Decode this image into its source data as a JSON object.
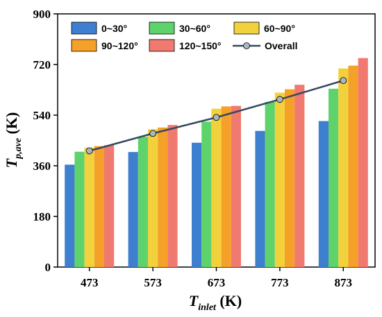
{
  "chart_data": {
    "type": "bar",
    "categories": [
      "473",
      "573",
      "673",
      "773",
      "873"
    ],
    "series": [
      {
        "name": "0~30°",
        "color": "#3f7fcf",
        "values": [
          364,
          409,
          442,
          484,
          519
        ]
      },
      {
        "name": "30~60°",
        "color": "#5ed36b",
        "values": [
          410,
          463,
          517,
          587,
          634
        ]
      },
      {
        "name": "60~90°",
        "color": "#f2d23c",
        "values": [
          425,
          490,
          563,
          620,
          706
        ]
      },
      {
        "name": "90~120°",
        "color": "#f5a028",
        "values": [
          430,
          496,
          571,
          632,
          716
        ]
      },
      {
        "name": "120~150°",
        "color": "#f07a70",
        "values": [
          433,
          505,
          573,
          648,
          743
        ]
      }
    ],
    "overall": {
      "name": "Overall",
      "color": "#34495e",
      "values": [
        413,
        475,
        532,
        596,
        663
      ]
    },
    "ylim": [
      0,
      900
    ],
    "yticks": [
      "0",
      "180",
      "360",
      "540",
      "720",
      "900"
    ],
    "ylabel": {
      "main": "T",
      "sub": "p,ave",
      "unit": " (K)"
    },
    "xlabel": {
      "main": "T",
      "sub": "inlet",
      "unit": " (K)"
    },
    "legend_position": "top-left",
    "grid": false
  }
}
